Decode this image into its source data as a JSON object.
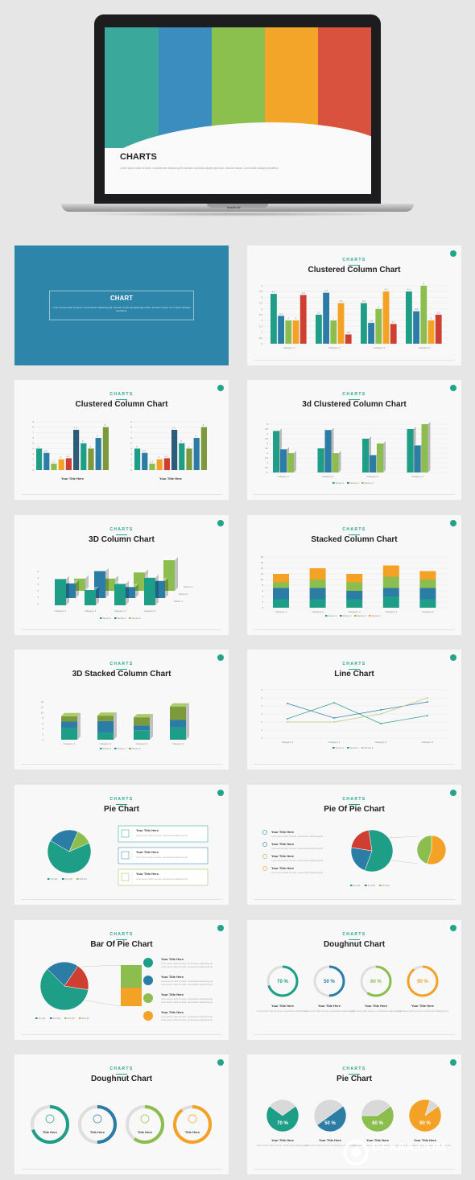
{
  "laptop": {
    "title": "CHARTS",
    "subtitle": "Lorem ipsum dolor sit amet, consectetuer adipiscing elit. Aenean commodo ligula eget dolor. Aenean massa. Cum sociis natoque penatibus.",
    "brand": "MacBook",
    "colors": [
      "#3aa89a",
      "#3b8dbf",
      "#8bbf4e",
      "#f3a52a",
      "#d8523d"
    ]
  },
  "section_slide": {
    "title": "CHART",
    "text": "Lorem ipsum dolor sit amet, consectetuer adipiscing elit. Aenean commodo ligula eget dolor. Aenean massa. Cum sociis natoque penatibus."
  },
  "tag": "CHARTS",
  "slides": [
    {
      "title": "Clustered Column Chart"
    },
    {
      "title": "Clustered Column Chart",
      "captions": [
        "Your Title Here",
        "Your Title Here"
      ]
    },
    {
      "title": "3d Clustered Column Chart"
    },
    {
      "title": "3D Column Chart"
    },
    {
      "title": "Stacked Column Chart"
    },
    {
      "title": "3D Stacked Column Chart"
    },
    {
      "title": "Line Chart"
    },
    {
      "title": "Pie Chart",
      "items": [
        "Your Title Here",
        "Your Title Here",
        "Your Title Here"
      ]
    },
    {
      "title": "Pie Of Pie Chart",
      "items": [
        "Your Title Here",
        "Your Title Here",
        "Your Title Here",
        "Your Title Here"
      ]
    },
    {
      "title": "Bar Of Pie Chart",
      "items": [
        "Your Title Here",
        "Your Title Here",
        "Your Title Here",
        "Your Title Here"
      ]
    },
    {
      "title": "Doughnut Chart",
      "captions": [
        "Your Title Here",
        "Your Title Here",
        "Your Title Here",
        "Your Title Here"
      ]
    },
    {
      "title": "Doughnut Chart",
      "captions": [
        "Title Here",
        "Title Here",
        "Title Here",
        "Title Here"
      ]
    },
    {
      "title": "Pie Chart",
      "captions": [
        "Your Title Here",
        "Your Title Here",
        "Your Title Here",
        "Your Title Here"
      ]
    }
  ],
  "lorem_short": "Lorem ipsum dolor sit amet, consectetuer adipiscing elit.",
  "colors": {
    "teal": "#1e9e86",
    "blue": "#2b7da6",
    "green": "#8cbd4f",
    "orange": "#f4a225",
    "red": "#cf3f31",
    "navy": "#2d5b7a",
    "olive": "#7c9a3b"
  },
  "chart_data": [
    {
      "type": "bar",
      "categories": [
        "Category 1",
        "Category 2",
        "Category 3",
        "Category 4"
      ],
      "series": [
        {
          "values": [
            4.3,
            2.5,
            3.5,
            4.5
          ]
        },
        {
          "values": [
            2.4,
            4.4,
            1.8,
            2.8
          ]
        },
        {
          "values": [
            2,
            2,
            3,
            5
          ]
        },
        {
          "values": [
            2,
            3.5,
            4.5,
            2
          ]
        },
        {
          "values": [
            4.2,
            0.8,
            1.7,
            2.5
          ]
        }
      ],
      "ylim": [
        0,
        5
      ]
    },
    {
      "type": "bar",
      "series": [
        {
          "values": [
            4,
            3.2,
            1.2,
            2,
            2.2,
            7.5,
            5,
            4,
            6,
            8
          ]
        },
        {
          "values": [
            4,
            3.2,
            1.2,
            2,
            2.2,
            7.5,
            5,
            4,
            6,
            8
          ]
        }
      ],
      "ylim": [
        0,
        9
      ]
    },
    {
      "type": "bar",
      "categories": [
        "Category 1",
        "Category 2",
        "Category 3",
        "Category 4"
      ],
      "legend": [
        "Series 1",
        "Series 2",
        "Series 3"
      ],
      "series": [
        {
          "name": "Series 1",
          "values": [
            4.3,
            2.5,
            3.5,
            4.5
          ]
        },
        {
          "name": "Series 2",
          "values": [
            2.4,
            4.4,
            1.8,
            2.8
          ]
        },
        {
          "name": "Series 3",
          "values": [
            2,
            2,
            3,
            5
          ]
        }
      ],
      "ylim": [
        0,
        5
      ]
    },
    {
      "type": "bar",
      "categories": [
        "Category 1",
        "Category 2",
        "Category 3",
        "Category 4"
      ],
      "legend": [
        "Series 1",
        "Series 2",
        "Series 3"
      ],
      "series": [
        {
          "name": "Series 1",
          "values": [
            4.3,
            2.5,
            3.5,
            4.5
          ]
        },
        {
          "name": "Series 2",
          "values": [
            2.4,
            4.4,
            1.8,
            2.8
          ]
        },
        {
          "name": "Series 3",
          "values": [
            2,
            2,
            3,
            5
          ]
        }
      ],
      "ylim": [
        0,
        5
      ]
    },
    {
      "type": "bar",
      "categories": [
        "Category 1",
        "Category 2",
        "Category 3",
        "Category 4",
        "Category 5"
      ],
      "legend": [
        "Series 1",
        "Series 2",
        "Series 3",
        "Series 4"
      ],
      "series": [
        {
          "name": "Series 1",
          "values": [
            3,
            3,
            3,
            4,
            3
          ]
        },
        {
          "name": "Series 2",
          "values": [
            4,
            4,
            3,
            3,
            4
          ]
        },
        {
          "name": "Series 3",
          "values": [
            2,
            3,
            3,
            4,
            3
          ]
        },
        {
          "name": "Series 4",
          "values": [
            3,
            4,
            3,
            4,
            3
          ]
        }
      ],
      "ylim": [
        0,
        18
      ]
    },
    {
      "type": "bar",
      "categories": [
        "Category 1",
        "Category 2",
        "Category 3",
        "Category 4"
      ],
      "legend": [
        "Series 1",
        "Series 2",
        "Series 3"
      ],
      "series": [
        {
          "name": "Series 1",
          "values": [
            4.3,
            2.5,
            3.5,
            4.5
          ]
        },
        {
          "name": "Series 2",
          "values": [
            2.4,
            4.4,
            1.8,
            2.8
          ]
        },
        {
          "name": "Series 3",
          "values": [
            2,
            2,
            3,
            5
          ]
        }
      ],
      "ylim": [
        0,
        14
      ]
    },
    {
      "type": "line",
      "categories": [
        "Category 1",
        "Category 2",
        "Category 3",
        "Category 4"
      ],
      "legend": [
        "Series 1",
        "Series 2",
        "Series 3"
      ],
      "series": [
        {
          "name": "Series 1",
          "values": [
            4.3,
            2.5,
            3.5,
            4.5
          ]
        },
        {
          "name": "Series 2",
          "values": [
            2.4,
            4.4,
            1.8,
            2.8
          ]
        },
        {
          "name": "Series 3",
          "values": [
            2,
            2,
            3,
            5
          ]
        }
      ],
      "ylim": [
        0,
        6
      ]
    },
    {
      "type": "pie",
      "labels": [
        "1st Qtr",
        "2nd Qtr",
        "3rd Qtr"
      ],
      "values": [
        65,
        23,
        12
      ]
    },
    {
      "type": "pie",
      "labels": [
        "1st Qtr",
        "2nd Qtr",
        "3rd Qtr"
      ],
      "values": [
        58,
        22,
        20
      ]
    },
    {
      "type": "pie",
      "labels": [
        "1st Qtr",
        "2nd Qtr",
        "3rd Qtr",
        "4th Qtr"
      ],
      "values": [
        60,
        22,
        18,
        0
      ]
    },
    {
      "type": "pie",
      "values": [
        70,
        50,
        60,
        90
      ]
    }
  ]
}
